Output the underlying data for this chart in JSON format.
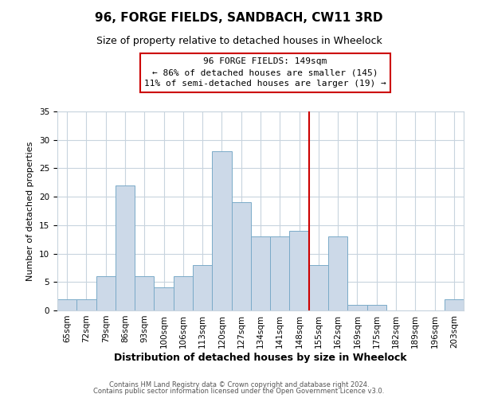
{
  "title": "96, FORGE FIELDS, SANDBACH, CW11 3RD",
  "subtitle": "Size of property relative to detached houses in Wheelock",
  "xlabel": "Distribution of detached houses by size in Wheelock",
  "ylabel": "Number of detached properties",
  "bar_labels": [
    "65sqm",
    "72sqm",
    "79sqm",
    "86sqm",
    "93sqm",
    "100sqm",
    "106sqm",
    "113sqm",
    "120sqm",
    "127sqm",
    "134sqm",
    "141sqm",
    "148sqm",
    "155sqm",
    "162sqm",
    "169sqm",
    "175sqm",
    "182sqm",
    "189sqm",
    "196sqm",
    "203sqm"
  ],
  "bar_values": [
    2,
    2,
    6,
    22,
    6,
    4,
    6,
    8,
    28,
    19,
    13,
    13,
    14,
    8,
    13,
    1,
    1,
    0,
    0,
    0,
    2
  ],
  "bar_color": "#ccd9e8",
  "bar_edge_color": "#7aaac8",
  "reference_line_color": "#cc0000",
  "annotation_title": "96 FORGE FIELDS: 149sqm",
  "annotation_line1": "← 86% of detached houses are smaller (145)",
  "annotation_line2": "11% of semi-detached houses are larger (19) →",
  "annotation_box_color": "#ffffff",
  "annotation_box_edge": "#cc0000",
  "ylim": [
    0,
    35
  ],
  "yticks": [
    0,
    5,
    10,
    15,
    20,
    25,
    30,
    35
  ],
  "footer1": "Contains HM Land Registry data © Crown copyright and database right 2024.",
  "footer2": "Contains public sector information licensed under the Open Government Licence v3.0.",
  "background_color": "#ffffff",
  "grid_color": "#c8d4de",
  "title_fontsize": 11,
  "subtitle_fontsize": 9,
  "xlabel_fontsize": 9,
  "ylabel_fontsize": 8,
  "tick_fontsize": 7.5,
  "footer_fontsize": 6,
  "ann_fontsize": 8
}
